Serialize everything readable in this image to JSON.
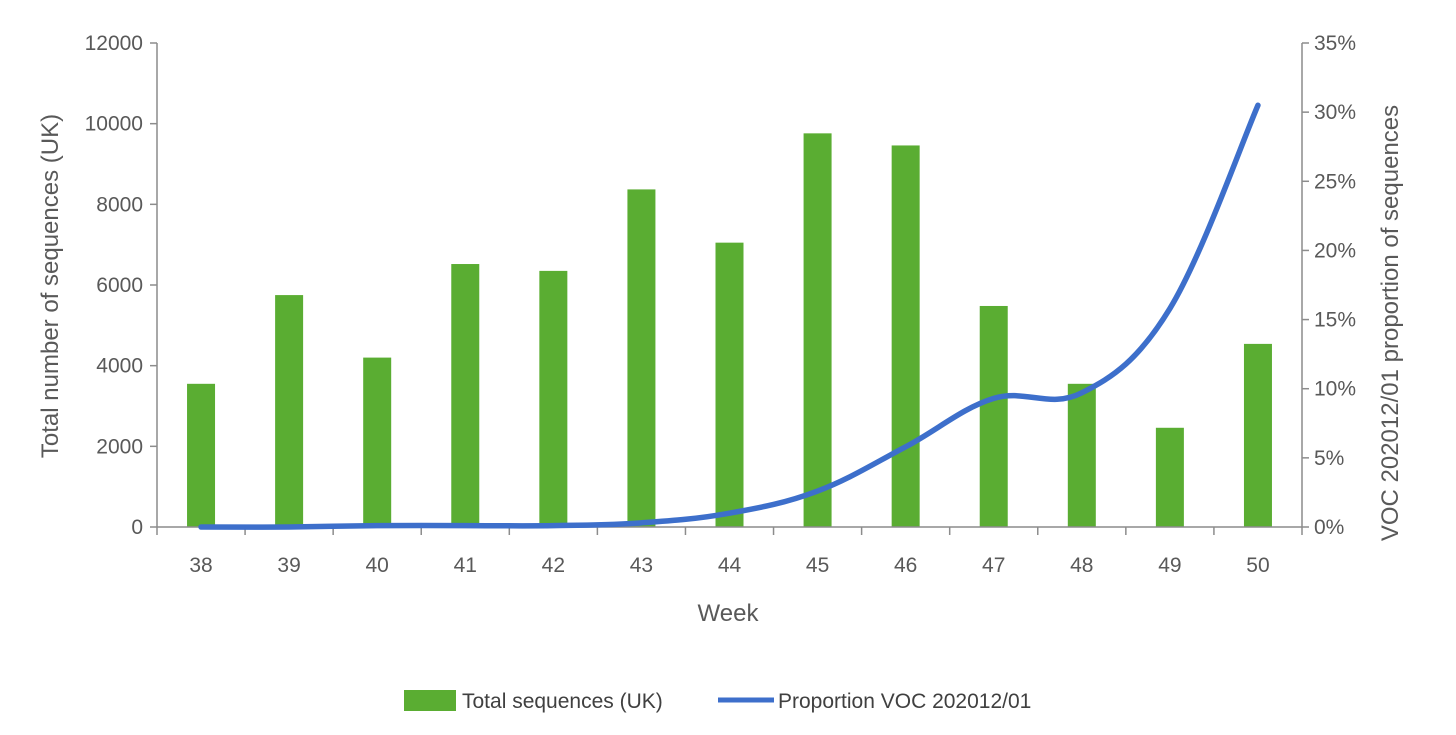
{
  "chart_data": {
    "type": "bar",
    "title": "",
    "xlabel": "Week",
    "ylabel": "Total number of sequences (UK)",
    "y2label": "VOC 202012/01 proportion of sequences",
    "categories": [
      "38",
      "39",
      "40",
      "41",
      "42",
      "43",
      "44",
      "45",
      "46",
      "47",
      "48",
      "49",
      "50"
    ],
    "ylim": [
      0,
      12000
    ],
    "yticks": [
      0,
      2000,
      4000,
      6000,
      8000,
      10000,
      12000
    ],
    "y2lim": [
      0,
      0.35
    ],
    "y2ticks": [
      0,
      0.05,
      0.1,
      0.15,
      0.2,
      0.25,
      0.3,
      0.35
    ],
    "y2ticklabels": [
      "0%",
      "5%",
      "10%",
      "15%",
      "20%",
      "25%",
      "30%",
      "35%"
    ],
    "grid": false,
    "legend_position": "bottom",
    "series": [
      {
        "name": "Total sequences (UK)",
        "type": "bar",
        "axis": "left",
        "color": "#5aad32",
        "values": [
          3550,
          5750,
          4200,
          6520,
          6350,
          8370,
          7050,
          9760,
          9460,
          5480,
          3550,
          2460,
          4540
        ]
      },
      {
        "name": "Proportion VOC 202012/01",
        "type": "line",
        "axis": "right",
        "color": "#3d6fcb",
        "values": [
          0.0,
          0.0,
          0.001,
          0.001,
          0.001,
          0.003,
          0.01,
          0.026,
          0.058,
          0.093,
          0.097,
          0.158,
          0.305
        ]
      }
    ]
  }
}
